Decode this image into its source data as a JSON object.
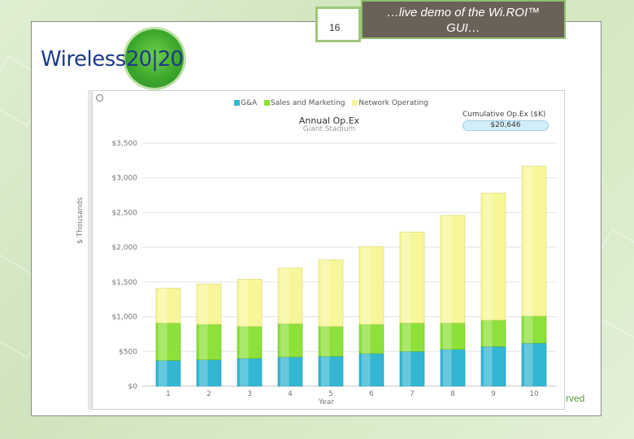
{
  "slide": {
    "number": "16",
    "title_line1": "…live demo of the Wi.ROI™",
    "title_line2": "GUI…",
    "footer_fragment": "rved"
  },
  "logo": {
    "word": "Wireless",
    "number": "20|20"
  },
  "colors": {
    "gna": "#33b6d2",
    "sales": "#8ee03a",
    "network": "#f7f79a",
    "gna_dark": "#1f93b0",
    "sales_dark": "#6bbd22",
    "network_dark": "#d6d66a"
  },
  "chart_panel": {
    "legend": [
      "G&A",
      "Sales and Marketing",
      "Network Operating"
    ],
    "cumulative_label": "Cumulative Op.Ex ($K)",
    "cumulative_value": "$20,646"
  },
  "chart_data": {
    "type": "bar",
    "stacked": true,
    "title": "Annual Op.Ex",
    "subtitle": "Giant Stadium",
    "xlabel": "Year",
    "ylabel": "$ Thousands",
    "categories": [
      "1",
      "2",
      "3",
      "4",
      "5",
      "6",
      "7",
      "8",
      "9",
      "10"
    ],
    "ylim": [
      0,
      3500
    ],
    "yticks": [
      "$0",
      "$500",
      "$1,000",
      "$1,500",
      "$2,000",
      "$2,500",
      "$3,000",
      "$3,500"
    ],
    "series": [
      {
        "name": "G&A",
        "values": [
          370,
          380,
          400,
          420,
          430,
          470,
          500,
          530,
          570,
          620
        ]
      },
      {
        "name": "Sales and Marketing",
        "values": [
          540,
          510,
          460,
          480,
          430,
          420,
          410,
          380,
          380,
          390
        ]
      },
      {
        "name": "Network Operating",
        "values": [
          500,
          580,
          680,
          800,
          960,
          1120,
          1310,
          1550,
          1830,
          2160
        ]
      }
    ],
    "legend_position": "top",
    "grid": true
  }
}
